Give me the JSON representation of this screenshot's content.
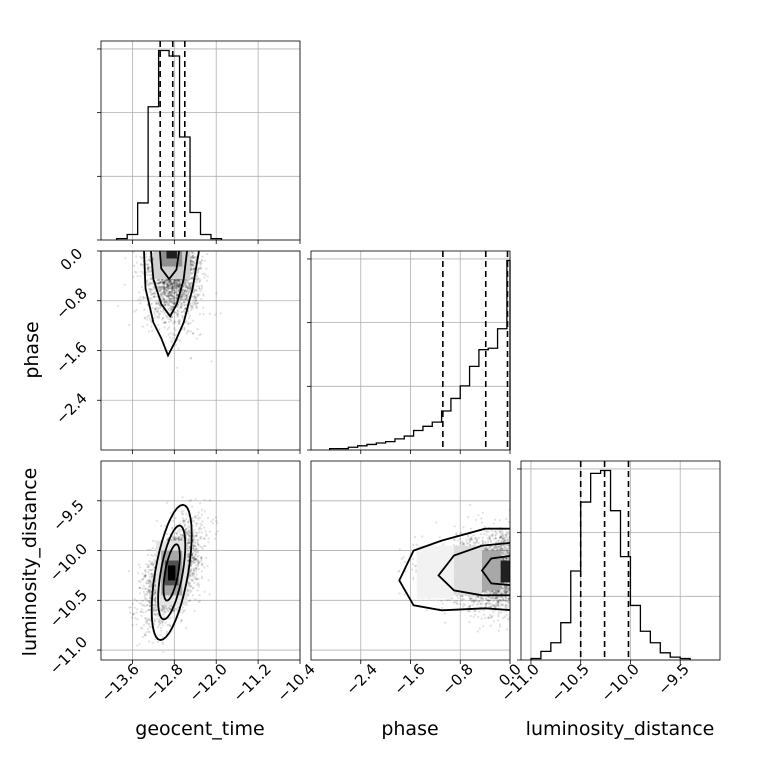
{
  "chart_data": {
    "type": "corner",
    "parameters": [
      "geocent_time",
      "phase",
      "luminosity_distance"
    ],
    "axis_labels": {
      "geocent_time": "geocent_time",
      "phase": "phase",
      "luminosity_distance": "luminosity_distance"
    },
    "ranges": {
      "geocent_time": [
        -14.2,
        -10.4
      ],
      "phase": [
        -3.2,
        0.0
      ],
      "luminosity_distance": [
        -11.1,
        -9.1
      ]
    },
    "ticks": {
      "geocent_time": [
        -13.6,
        -12.8,
        -12.0,
        -11.2,
        -10.4
      ],
      "phase": [
        -2.4,
        -1.6,
        -0.8,
        0.0
      ],
      "luminosity_distance": [
        -11.0,
        -10.5,
        -10.0,
        -9.5
      ]
    },
    "tick_labels": {
      "geocent_time": [
        "−13.6",
        "−12.8",
        "−12.0",
        "−11.2",
        "−10.4"
      ],
      "phase": [
        "−2.4",
        "−1.6",
        "−0.8",
        "0.0"
      ],
      "luminosity_distance": [
        "−11.0",
        "−10.5",
        "−10.0",
        "−9.5"
      ]
    },
    "grid": true,
    "histograms": {
      "geocent_time": {
        "bin_edges": [
          -13.9,
          -13.7,
          -13.5,
          -13.3,
          -13.1,
          -12.9,
          -12.7,
          -12.5,
          -12.3,
          -12.1,
          -11.9
        ],
        "counts": [
          1,
          4,
          27,
          97,
          138,
          134,
          75,
          20,
          4,
          1
        ],
        "quantiles": [
          -13.07,
          -12.83,
          -12.6
        ]
      },
      "phase": {
        "bin_edges": [
          -2.9,
          -2.75,
          -2.6,
          -2.45,
          -2.3,
          -2.15,
          -2.0,
          -1.85,
          -1.7,
          -1.55,
          -1.4,
          -1.25,
          -1.1,
          -0.95,
          -0.8,
          -0.65,
          -0.5,
          -0.35,
          -0.2,
          -0.05,
          0.0
        ],
        "counts": [
          1,
          1,
          2,
          3,
          4,
          5,
          6,
          8,
          10,
          14,
          17,
          20,
          28,
          37,
          46,
          60,
          72,
          73,
          87,
          136
        ],
        "quantiles": [
          -1.08,
          -0.39,
          -0.04
        ]
      },
      "luminosity_distance": {
        "bin_edges": [
          -11.0,
          -10.9,
          -10.8,
          -10.7,
          -10.6,
          -10.5,
          -10.4,
          -10.3,
          -10.2,
          -10.1,
          -10.0,
          -9.9,
          -9.8,
          -9.7,
          -9.6,
          -9.5,
          -9.4
        ],
        "counts": [
          1,
          6,
          12,
          26,
          62,
          110,
          130,
          132,
          104,
          72,
          38,
          20,
          12,
          5,
          2,
          1
        ],
        "quantiles": [
          -10.5,
          -10.26,
          -10.02
        ]
      }
    },
    "joint": {
      "phase_vs_geocent_time": {
        "peak": [
          -12.8,
          -0.05
        ]
      },
      "luminosity_distance_vs_geocent_time": {
        "peak": [
          -12.85,
          -10.22
        ]
      },
      "luminosity_distance_vs_phase": {
        "peak": [
          -0.05,
          -10.22
        ]
      }
    }
  }
}
